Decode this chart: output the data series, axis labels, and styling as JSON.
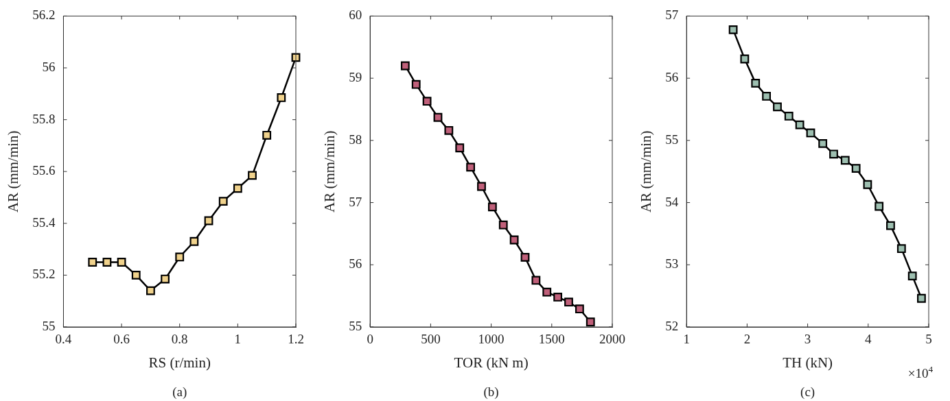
{
  "chart_data": [
    {
      "type": "line",
      "xlabel": "RS (r/min)",
      "ylabel": "AR (mm/min)",
      "marker": "square",
      "line_style": "solid",
      "annotations": [
        "(a)"
      ],
      "x": [
        0.5,
        0.55,
        0.6,
        0.65,
        0.7,
        0.75,
        0.8,
        0.85,
        0.9,
        0.95,
        1.0,
        1.05,
        1.1,
        1.15,
        1.2
      ],
      "series": [
        {
          "color": "#f0d28c",
          "values": [
            55.25,
            55.25,
            55.25,
            55.2,
            55.14,
            55.185,
            55.27,
            55.33,
            55.41,
            55.485,
            55.535,
            55.585,
            55.74,
            55.885,
            56.04
          ]
        }
      ],
      "xlim": [
        0.4,
        1.2
      ],
      "xticks": [
        0.4,
        0.6,
        0.8,
        1,
        1.2
      ],
      "ylim": [
        55,
        56.2
      ],
      "yticks": [
        55,
        55.2,
        55.4,
        55.6,
        55.8,
        56,
        56.2
      ]
    },
    {
      "type": "line",
      "xlabel": "TOR (kN m)",
      "ylabel": "AR (mm/min)",
      "marker": "square",
      "line_style": "solid",
      "annotations": [
        "(b)"
      ],
      "x": [
        290,
        380,
        470,
        560,
        650,
        740,
        830,
        920,
        1010,
        1100,
        1190,
        1280,
        1370,
        1460,
        1550,
        1640,
        1730,
        1820
      ],
      "series": [
        {
          "color": "#c0607a",
          "values": [
            59.2,
            58.9,
            58.63,
            58.37,
            58.16,
            57.88,
            57.57,
            57.26,
            56.93,
            56.64,
            56.4,
            56.12,
            55.75,
            55.56,
            55.48,
            55.4,
            55.29,
            55.08
          ]
        }
      ],
      "xlim": [
        0,
        2000
      ],
      "xticks": [
        0,
        500,
        1000,
        1500,
        2000
      ],
      "ylim": [
        55,
        60
      ],
      "yticks": [
        55,
        56,
        57,
        58,
        59,
        60
      ]
    },
    {
      "type": "line",
      "xlabel": "TH (kN)",
      "ylabel": "AR (mm/min)",
      "marker": "square",
      "line_style": "solid",
      "annotations": [
        "×10$^{4}$",
        "(c)"
      ],
      "x": [
        1.77,
        1.96,
        2.14,
        2.32,
        2.5,
        2.69,
        2.87,
        3.05,
        3.25,
        3.43,
        3.62,
        3.8,
        3.99,
        4.18,
        4.37,
        4.55,
        4.73,
        4.88
      ],
      "series": [
        {
          "color": "#9dbfb0",
          "values": [
            56.78,
            56.31,
            55.92,
            55.71,
            55.54,
            55.39,
            55.25,
            55.12,
            54.95,
            54.78,
            54.68,
            54.55,
            54.29,
            53.94,
            53.63,
            53.26,
            52.82,
            52.46
          ]
        }
      ],
      "xlim": [
        1,
        5
      ],
      "xticks": [
        1,
        2,
        3,
        4,
        5
      ],
      "ylim": [
        52,
        57
      ],
      "yticks": [
        52,
        53,
        54,
        55,
        56,
        57
      ]
    }
  ]
}
